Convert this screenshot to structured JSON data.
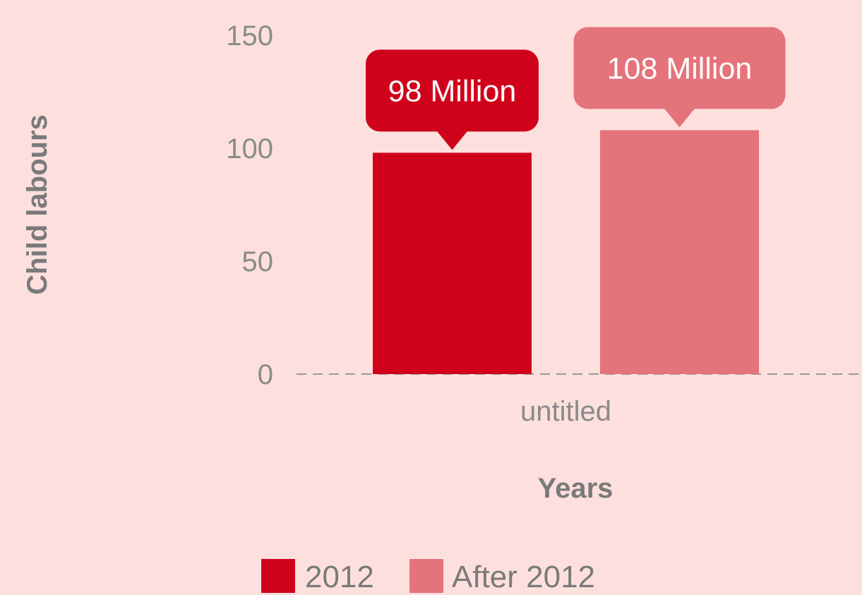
{
  "chart_data": {
    "type": "bar",
    "categories": [
      "untitled"
    ],
    "series": [
      {
        "name": "2012",
        "values": [
          98
        ],
        "color": "#d0021b",
        "data_label": "98 Million"
      },
      {
        "name": "After 2012",
        "values": [
          108
        ],
        "color": "#e5737b",
        "data_label": "108 Million"
      }
    ],
    "xlabel": "Years",
    "ylabel": "Child labours",
    "ylim": [
      0,
      150
    ],
    "yticks": [
      0,
      50,
      100,
      150
    ],
    "grid": false,
    "baseline": "dashed",
    "legend": "bottom"
  }
}
